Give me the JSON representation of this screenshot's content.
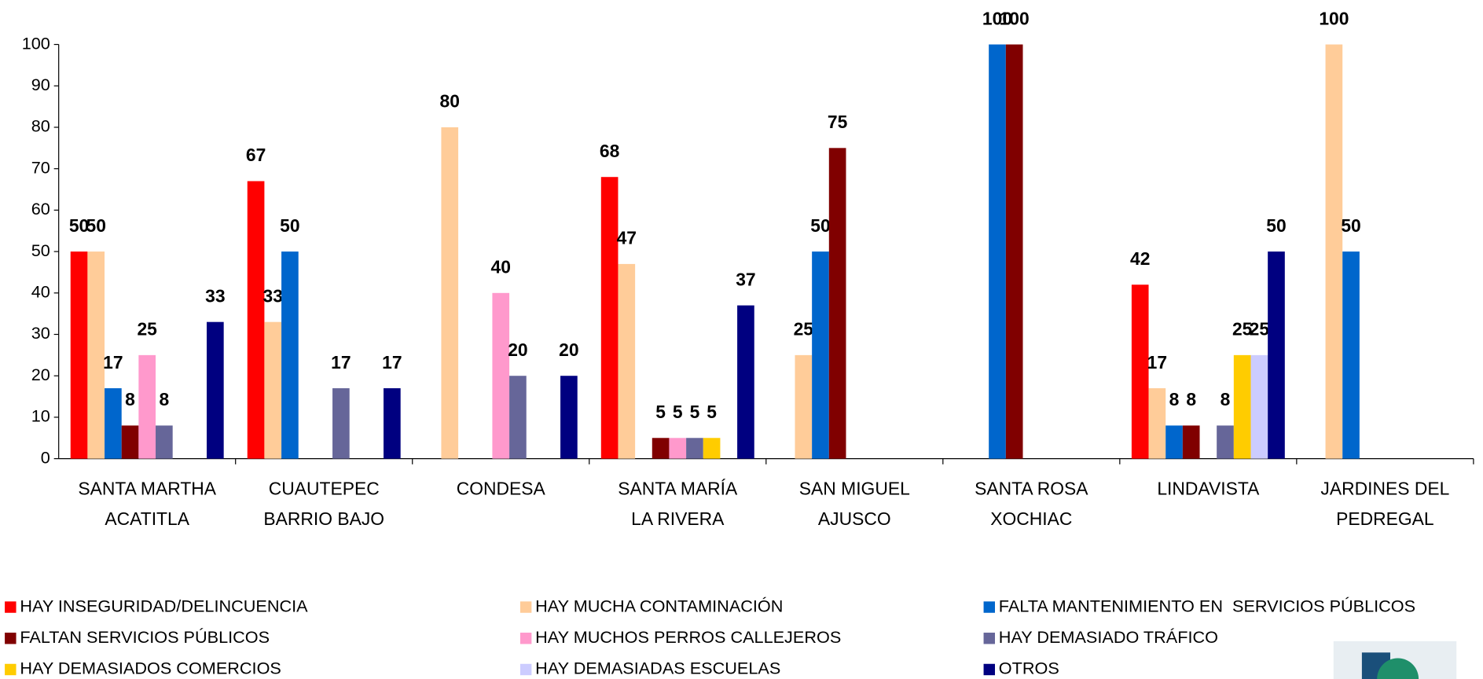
{
  "chart_data": {
    "type": "bar",
    "categories": [
      [
        "SANTA MARTHA",
        "ACATITLA"
      ],
      [
        "CUAUTEPEC",
        "BARRIO BAJO"
      ],
      [
        "CONDESA"
      ],
      [
        "SANTA MARÍA",
        "LA RIVERA"
      ],
      [
        "SAN MIGUEL",
        "AJUSCO"
      ],
      [
        "SANTA ROSA",
        "XOCHIAC"
      ],
      [
        "LINDAVISTA"
      ],
      [
        "JARDINES DEL",
        "PEDREGAL"
      ]
    ],
    "series": [
      {
        "name": "HAY INSEGURIDAD/DELINCUENCIA",
        "color": "#ff0000",
        "values": [
          50,
          67,
          null,
          68,
          null,
          null,
          42,
          null
        ]
      },
      {
        "name": "HAY MUCHA CONTAMINACIÓN",
        "color": "#ffcc99",
        "values": [
          50,
          33,
          80,
          47,
          25,
          null,
          17,
          100
        ]
      },
      {
        "name": "FALTA MANTENIMIENTO EN  SERVICIOS PÚBLICOS",
        "color": "#0066cc",
        "values": [
          17,
          50,
          null,
          null,
          50,
          100,
          8,
          50
        ]
      },
      {
        "name": "FALTAN SERVICIOS PÚBLICOS",
        "color": "#800000",
        "values": [
          8,
          null,
          null,
          5,
          75,
          100,
          8,
          null
        ]
      },
      {
        "name": "HAY MUCHOS PERROS CALLEJEROS",
        "color": "#ff99cc",
        "values": [
          25,
          null,
          40,
          5,
          null,
          null,
          null,
          null
        ]
      },
      {
        "name": "HAY DEMASIADO TRÁFICO",
        "color": "#666699",
        "values": [
          8,
          17,
          20,
          5,
          null,
          null,
          8,
          null
        ]
      },
      {
        "name": "HAY DEMASIADOS COMERCIOS",
        "color": "#ffcc00",
        "values": [
          null,
          null,
          null,
          5,
          null,
          null,
          25,
          null
        ]
      },
      {
        "name": "HAY DEMASIADAS ESCUELAS",
        "color": "#ccccff",
        "values": [
          null,
          null,
          null,
          null,
          null,
          null,
          25,
          null
        ]
      },
      {
        "name": "OTROS",
        "color": "#000080",
        "values": [
          33,
          17,
          20,
          37,
          null,
          null,
          50,
          null
        ]
      }
    ],
    "ylim": [
      0,
      100
    ],
    "yticks": [
      0,
      10,
      20,
      30,
      40,
      50,
      60,
      70,
      80,
      90,
      100
    ]
  }
}
